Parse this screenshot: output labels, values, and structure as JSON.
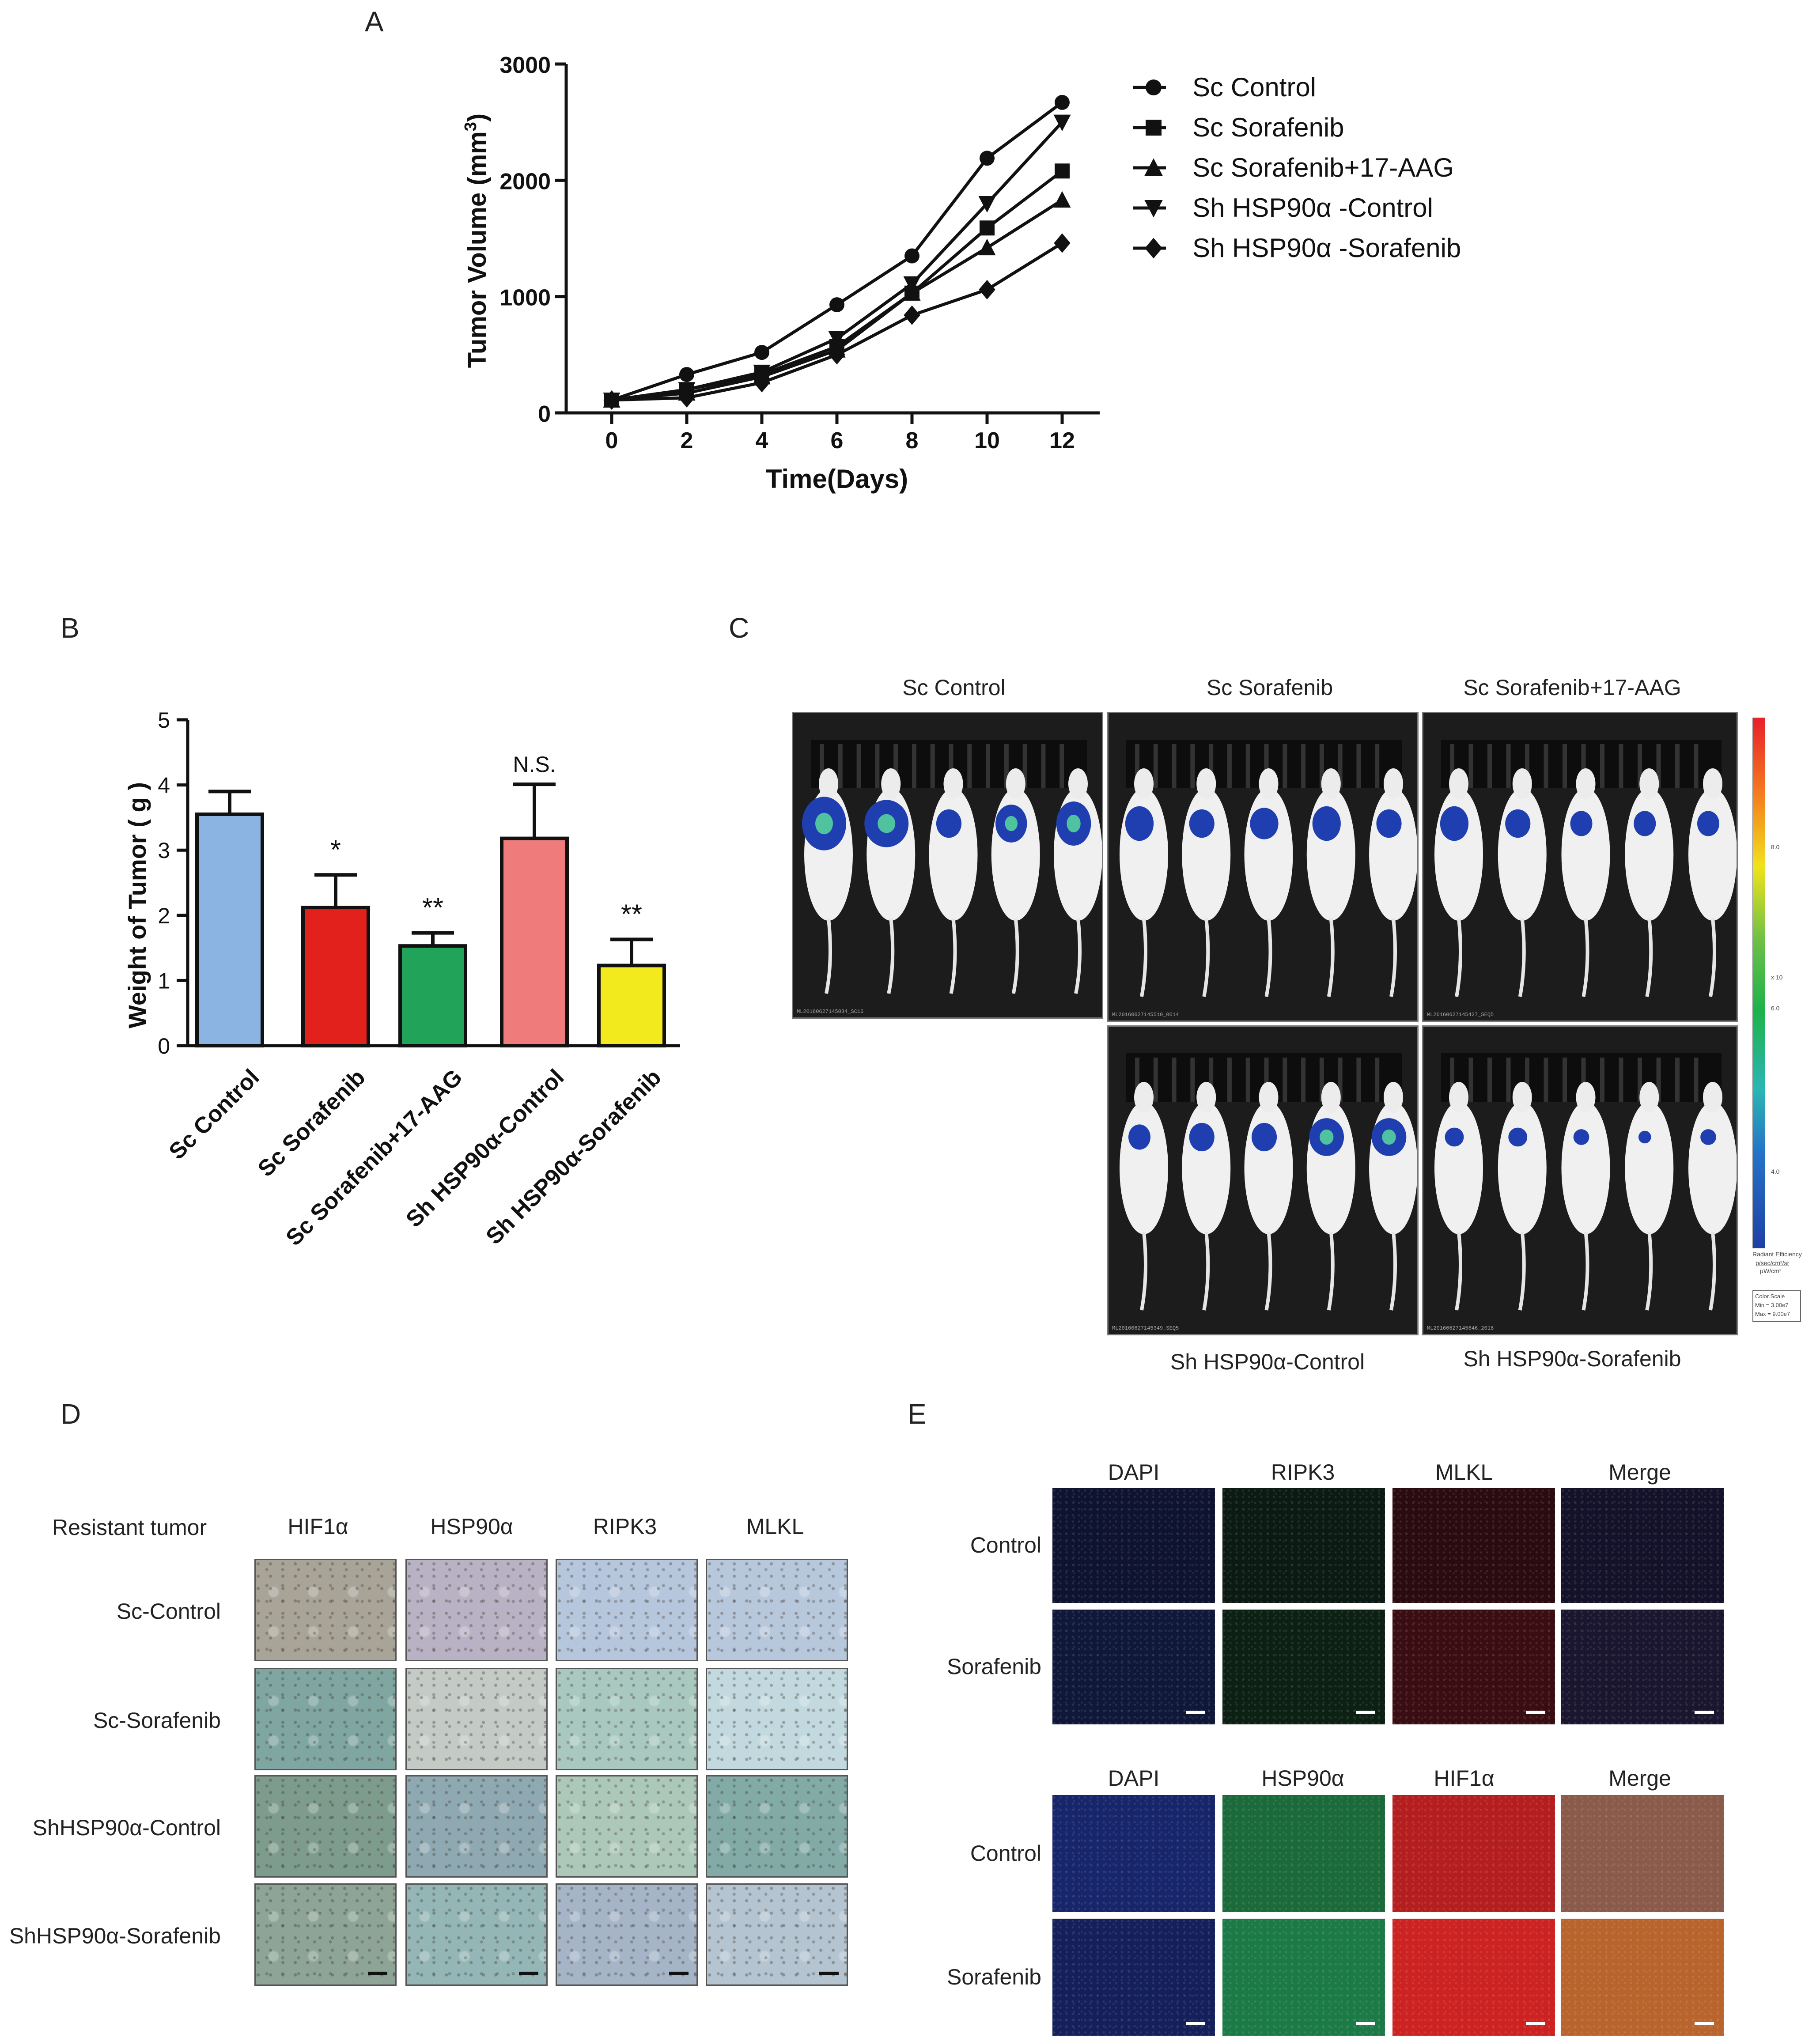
{
  "panels": {
    "a": "A",
    "b": "B",
    "c": "C",
    "d": "D",
    "e": "E"
  },
  "chart_data": [
    {
      "panel": "A",
      "type": "line",
      "xlabel": "Time(Days)",
      "ylabel": "Tumor Volume (mm",
      "ylabel_sup": "3",
      "ylabel_close": ")",
      "x": [
        0,
        2,
        4,
        6,
        8,
        10,
        12
      ],
      "xlim": [
        0,
        12
      ],
      "ylim": [
        0,
        3000
      ],
      "xticks": [
        "0",
        "2",
        "4",
        "6",
        "8",
        "10",
        "12"
      ],
      "yticks": [
        "0",
        "1000",
        "2000",
        "3000"
      ],
      "legend_position": "right",
      "series": [
        {
          "name": "Sc Control",
          "marker": "circle",
          "values": [
            110,
            330,
            520,
            930,
            1350,
            2190,
            2670
          ]
        },
        {
          "name": "Sc Sorafenib",
          "marker": "square",
          "values": [
            110,
            200,
            330,
            570,
            1030,
            1590,
            2080
          ]
        },
        {
          "name": "Sc Sorafenib+17-AAG",
          "marker": "triangle-up",
          "values": [
            110,
            170,
            310,
            540,
            1030,
            1420,
            1830
          ]
        },
        {
          "name": "Sh HSP90α -Control",
          "marker": "triangle-down",
          "values": [
            110,
            200,
            350,
            640,
            1110,
            1800,
            2500
          ]
        },
        {
          "name": "Sh HSP90α -Sorafenib",
          "marker": "diamond",
          "values": [
            110,
            130,
            260,
            500,
            840,
            1060,
            1460
          ]
        }
      ]
    },
    {
      "panel": "B",
      "type": "bar",
      "ylabel": "Weight of Tumor ( g )",
      "ylim": [
        0,
        5
      ],
      "yticks": [
        "0",
        "1",
        "2",
        "3",
        "4",
        "5"
      ],
      "categories": [
        "Sc Control",
        "Sc Sorafenib",
        "Sc Sorafenib+17-AAG",
        "Sh HSP90α-Control",
        "Sh HSP90α-Sorafenib"
      ],
      "values": [
        3.55,
        2.12,
        1.53,
        3.18,
        1.23
      ],
      "errors": [
        0.35,
        0.5,
        0.2,
        0.83,
        0.4
      ],
      "significance": [
        "",
        "*",
        "**",
        "N.S.",
        "**"
      ],
      "colors": [
        "#8cb4e2",
        "#e3211c",
        "#21a35a",
        "#ef7b7b",
        "#f3ea1d"
      ]
    }
  ],
  "panel_c": {
    "labels": {
      "top": [
        "Sc Control",
        "Sc Sorafenib",
        "Sc Sorafenib+17-AAG"
      ],
      "bottom": [
        "Sh HSP90α-Control",
        "Sh HSP90α-Sorafenib"
      ]
    },
    "scale_ticks": [
      "8.0",
      "6.0",
      "4.0"
    ],
    "scale_unit": "x 10",
    "scale_title": "Radiant Efficiency",
    "scale_units": "p/sec/cm²/sr",
    "scale_units2": "µW/cm²",
    "color_scale_box": [
      "Color Scale",
      "Min = 3.00e7",
      "Max = 9.00e7"
    ],
    "image_ids": [
      "ML20160627145034_SC16",
      "ML20160627145510_0014",
      "ML20160627145427_SEQ5",
      "ML20160627145349_SEQ5",
      "ML20160627145646_2016"
    ]
  },
  "panel_d": {
    "header": "Resistant tumor",
    "columns": [
      "HIF1α",
      "HSP90α",
      "RIPK3",
      "MLKL"
    ],
    "rows": [
      "Sc-Control",
      "Sc-Sorafenib",
      "ShHSP90α-Control",
      "ShHSP90α-Sorafenib"
    ]
  },
  "panel_e": {
    "top": {
      "columns": [
        "DAPI",
        "RIPK3",
        "MLKL",
        "Merge"
      ],
      "rows": [
        "Control",
        "Sorafenib"
      ]
    },
    "bottom": {
      "columns": [
        "DAPI",
        "HSP90α",
        "HIF1α",
        "Merge"
      ],
      "rows": [
        "Control",
        "Sorafenib"
      ]
    }
  }
}
